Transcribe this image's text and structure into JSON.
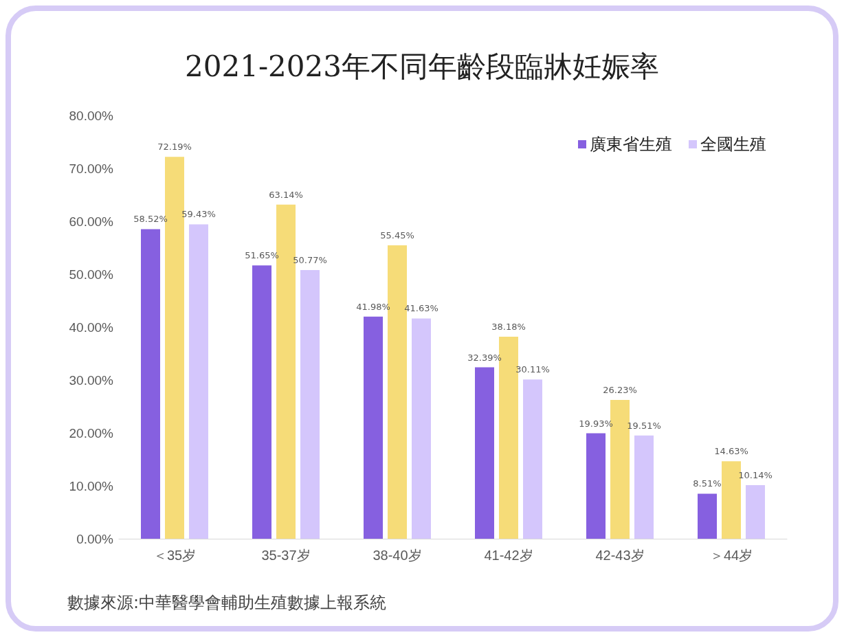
{
  "chart_data": {
    "type": "bar",
    "title": "2021-2023年不同年齡段臨牀妊娠率",
    "categories": [
      "＜35岁",
      "35-37岁",
      "38-40岁",
      "41-42岁",
      "42-43岁",
      "＞44岁"
    ],
    "series": [
      {
        "name": "廣東省生殖",
        "color": "#8660e0",
        "values": [
          58.52,
          51.65,
          41.98,
          32.39,
          19.93,
          8.51
        ],
        "value_labels": [
          "58.52%",
          "51.65%",
          "41.98%",
          "32.39%",
          "19.93%",
          "8.51%"
        ]
      },
      {
        "color": "#f6dc78",
        "values": [
          72.19,
          63.14,
          55.45,
          38.18,
          26.23,
          14.63
        ],
        "value_labels": [
          "72.19%",
          "63.14%",
          "55.45%",
          "38.18%",
          "26.23%",
          "14.63%"
        ]
      },
      {
        "name": "全國生殖",
        "color": "#d4c6fc",
        "values": [
          59.43,
          50.77,
          41.63,
          30.11,
          19.51,
          10.14
        ],
        "value_labels": [
          "59.43%",
          "50.77%",
          "41.63%",
          "30.11%",
          "19.51%",
          "10.14%"
        ]
      }
    ],
    "ylim": [
      0,
      80
    ],
    "yticks": [
      {
        "value": 0,
        "label": "0.00%"
      },
      {
        "value": 10,
        "label": "10.00%"
      },
      {
        "value": 20,
        "label": "20.00%"
      },
      {
        "value": 30,
        "label": "30.00%"
      },
      {
        "value": 40,
        "label": "40.00%"
      },
      {
        "value": 50,
        "label": "50.00%"
      },
      {
        "value": 60,
        "label": "60.00%"
      },
      {
        "value": 70,
        "label": "70.00%"
      },
      {
        "value": 80,
        "label": "80.00%"
      }
    ],
    "legend": "top right",
    "annotations": [
      "數據來源:中華醫學會輔助生殖數據上報系統"
    ]
  }
}
